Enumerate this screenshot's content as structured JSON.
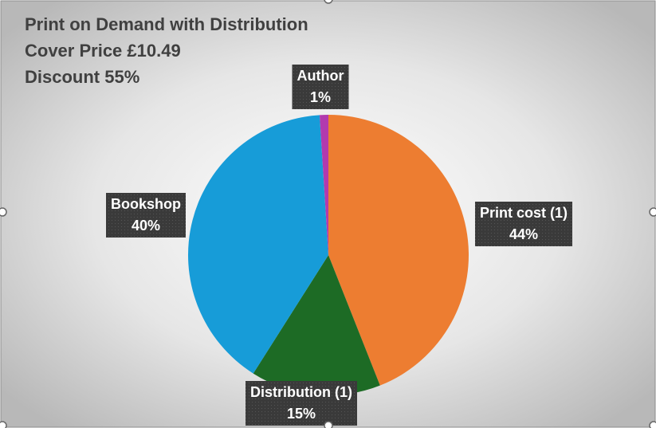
{
  "chart_data": {
    "type": "pie",
    "title": [
      "Print on Demand with Distribution",
      "Cover Price £10.49",
      "Discount 55%"
    ],
    "categories": [
      "Print cost (1)",
      "Distribution (1)",
      "Bookshop",
      "Author"
    ],
    "values": [
      44,
      15,
      40,
      1
    ],
    "value_labels": [
      "44%",
      "15%",
      "40%",
      "1%"
    ],
    "colors": [
      "#ED7D31",
      "#1D6B25",
      "#179CD8",
      "#B23AAE"
    ]
  }
}
